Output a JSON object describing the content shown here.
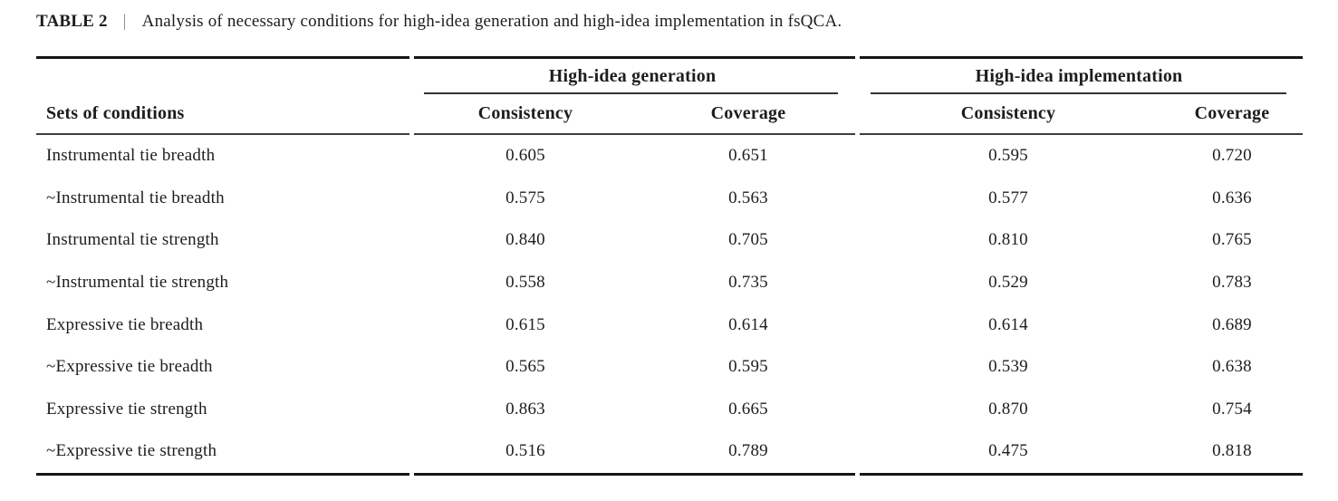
{
  "title": {
    "label": "TABLE 2",
    "separator": "|",
    "caption": "Analysis of necessary conditions for high-idea generation and high-idea implementation in fsQCA."
  },
  "table": {
    "row_header": "Sets of conditions",
    "groups": [
      {
        "label": "High-idea generation",
        "columns": [
          "Consistency",
          "Coverage"
        ]
      },
      {
        "label": "High-idea implementation",
        "columns": [
          "Consistency",
          "Coverage"
        ]
      }
    ],
    "rows": [
      {
        "condition": "Instrumental tie breadth",
        "values": [
          "0.605",
          "0.651",
          "0.595",
          "0.720"
        ]
      },
      {
        "condition": "~Instrumental tie breadth",
        "values": [
          "0.575",
          "0.563",
          "0.577",
          "0.636"
        ]
      },
      {
        "condition": "Instrumental tie strength",
        "values": [
          "0.840",
          "0.705",
          "0.810",
          "0.765"
        ]
      },
      {
        "condition": "~Instrumental tie strength",
        "values": [
          "0.558",
          "0.735",
          "0.529",
          "0.783"
        ]
      },
      {
        "condition": "Expressive tie breadth",
        "values": [
          "0.615",
          "0.614",
          "0.614",
          "0.689"
        ]
      },
      {
        "condition": "~Expressive tie breadth",
        "values": [
          "0.565",
          "0.595",
          "0.539",
          "0.638"
        ]
      },
      {
        "condition": "Expressive tie strength",
        "values": [
          "0.863",
          "0.665",
          "0.870",
          "0.754"
        ]
      },
      {
        "condition": "~Expressive tie strength",
        "values": [
          "0.516",
          "0.789",
          "0.475",
          "0.818"
        ]
      }
    ]
  }
}
